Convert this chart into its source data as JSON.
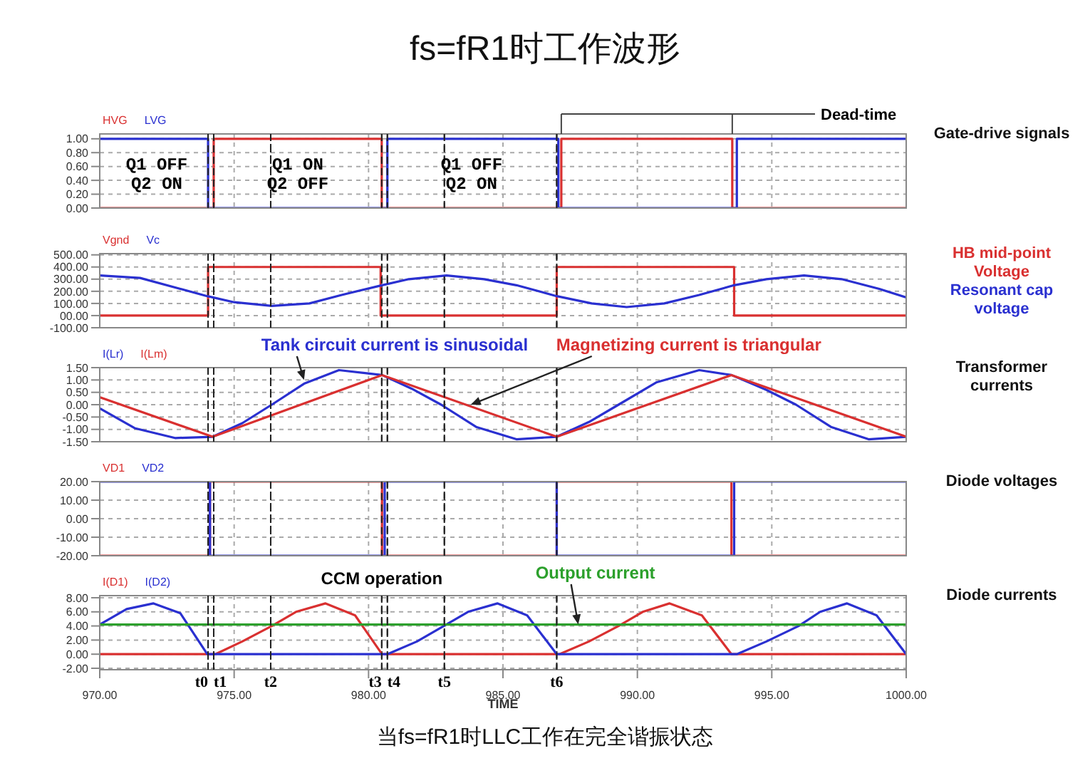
{
  "chart_data": [
    {
      "type": "line",
      "title": "fs=fR1时工作波形",
      "ylabel": "Gate-drive signals",
      "legend": "top left",
      "grid": true,
      "tick_labels": "y",
      "xlim": [
        970,
        1000
      ],
      "xticks": [
        970,
        975,
        980,
        985,
        990,
        995,
        1000
      ],
      "ylim": [
        0,
        1.07
      ],
      "yticks": [
        {
          "value": 0,
          "label": "0.00"
        },
        {
          "value": 0.2,
          "label": "0.20"
        },
        {
          "value": 0.4,
          "label": "0.40"
        },
        {
          "value": 0.6,
          "label": "0.60"
        },
        {
          "value": 0.8,
          "label": "0.80"
        },
        {
          "value": 1,
          "label": "1.00"
        }
      ],
      "series": [
        {
          "name": "HVG",
          "color": "#d93030",
          "x": [
            970,
            974.24,
            974.24,
            980.49,
            980.49,
            987.17,
            987.17,
            993.53,
            993.53,
            1000
          ],
          "values": [
            0,
            0,
            1,
            1,
            0,
            0,
            1,
            1,
            0,
            0
          ]
        },
        {
          "name": "LVG",
          "color": "#2a30d0",
          "x": [
            970,
            974.03,
            974.03,
            980.7,
            980.7,
            987.06,
            987.06,
            993.7,
            993.7,
            1000
          ],
          "values": [
            1,
            1,
            0,
            0,
            1,
            1,
            0,
            0,
            1,
            1
          ]
        }
      ],
      "ref_lines": [
        {
          "axis": "x",
          "value": 974.03,
          "line_style": "dashed"
        },
        {
          "axis": "x",
          "value": 974.24,
          "line_style": "dashed"
        },
        {
          "axis": "x",
          "value": 976.36,
          "line_style": "dashed"
        },
        {
          "axis": "x",
          "value": 980.49,
          "line_style": "dashed"
        },
        {
          "axis": "x",
          "value": 980.7,
          "line_style": "dashed"
        },
        {
          "axis": "x",
          "value": 982.82,
          "line_style": "dashed"
        },
        {
          "axis": "x",
          "value": 987.0,
          "line_style": "dashed"
        }
      ],
      "annotations": [
        "Dead-time",
        "Q1 OFF",
        "Q2 ON",
        "Q1 ON",
        "Q2 OFF",
        "Q1 OFF",
        "Q2 ON"
      ]
    },
    {
      "type": "line",
      "ylabel": "HB mid-point Voltage",
      "y2label": "Resonant cap voltage",
      "legend": "top left",
      "grid": true,
      "tick_labels": "y",
      "xlim": [
        970,
        1000
      ],
      "xticks": [
        970,
        975,
        980,
        985,
        990,
        995,
        1000
      ],
      "ylim": [
        -100,
        510
      ],
      "yticks": [
        {
          "value": -100,
          "label": "-100.00"
        },
        {
          "value": 0,
          "label": "00.00"
        },
        {
          "value": 100,
          "label": "100.00"
        },
        {
          "value": 200,
          "label": "200.00"
        },
        {
          "value": 300,
          "label": "300.00"
        },
        {
          "value": 400,
          "label": "400.00"
        },
        {
          "value": 500,
          "label": "500.00"
        }
      ],
      "series": [
        {
          "name": "Vgnd",
          "color": "#d93030",
          "x": [
            970,
            974.03,
            974.03,
            980.45,
            980.45,
            987.0,
            987.0,
            993.6,
            993.6,
            1000
          ],
          "values": [
            0,
            0,
            400,
            400,
            0,
            0,
            400,
            400,
            0,
            0
          ]
        },
        {
          "name": "Vc",
          "color": "#2a30d0",
          "x": [
            970,
            971.5,
            973,
            974,
            975,
            976.4,
            977.8,
            979,
            980.5,
            981.5,
            982.9,
            984.3,
            985.5,
            987,
            988.3,
            989.6,
            991,
            992.3,
            993.6,
            994.8,
            996.2,
            997.6,
            999,
            1000
          ],
          "values": [
            330,
            310,
            220,
            160,
            110,
            80,
            100,
            170,
            250,
            300,
            330,
            300,
            250,
            160,
            100,
            70,
            100,
            170,
            250,
            300,
            330,
            300,
            220,
            150
          ]
        }
      ],
      "ref_lines": [
        {
          "axis": "x",
          "value": 974.03,
          "line_style": "dashed"
        },
        {
          "axis": "x",
          "value": 974.24,
          "line_style": "dashed"
        },
        {
          "axis": "x",
          "value": 976.36,
          "line_style": "dashed"
        },
        {
          "axis": "x",
          "value": 980.49,
          "line_style": "dashed"
        },
        {
          "axis": "x",
          "value": 980.7,
          "line_style": "dashed"
        },
        {
          "axis": "x",
          "value": 982.82,
          "line_style": "dashed"
        },
        {
          "axis": "x",
          "value": 987.0,
          "line_style": "dashed"
        }
      ]
    },
    {
      "type": "line",
      "ylabel": "Transformer currents",
      "legend": "top left",
      "grid": true,
      "tick_labels": "y",
      "xlim": [
        970,
        1000
      ],
      "xticks": [
        970,
        975,
        980,
        985,
        990,
        995,
        1000
      ],
      "ylim": [
        -1.5,
        1.5
      ],
      "yticks": [
        {
          "value": -1.5,
          "label": "-1.50"
        },
        {
          "value": -1,
          "label": "-1.00"
        },
        {
          "value": -0.5,
          "label": "-0.50"
        },
        {
          "value": 0,
          "label": "0.00"
        },
        {
          "value": 0.5,
          "label": "0.50"
        },
        {
          "value": 1,
          "label": "1.00"
        },
        {
          "value": 1.5,
          "label": "1.50"
        }
      ],
      "series": [
        {
          "name": "I(Lr)",
          "color": "#2a30d0",
          "x": [
            970,
            971.3,
            972.8,
            974.2,
            975.3,
            976.4,
            977.6,
            978.9,
            980.5,
            981.6,
            982.7,
            984,
            985.5,
            987,
            988.2,
            989.3,
            990.7,
            992.3,
            993.5,
            994.8,
            995.9,
            997.2,
            998.6,
            1000
          ],
          "values": [
            -0.15,
            -0.95,
            -1.35,
            -1.3,
            -0.75,
            0,
            0.85,
            1.4,
            1.2,
            0.65,
            0,
            -0.9,
            -1.4,
            -1.3,
            -0.7,
            0,
            0.9,
            1.4,
            1.2,
            0.6,
            0,
            -0.9,
            -1.4,
            -1.3
          ]
        },
        {
          "name": "I(Lm)",
          "color": "#d93030",
          "x": [
            970,
            974.2,
            980.5,
            987.0,
            993.5,
            1000
          ],
          "values": [
            0.3,
            -1.3,
            1.2,
            -1.3,
            1.2,
            -1.3
          ]
        }
      ],
      "ref_lines": [
        {
          "axis": "x",
          "value": 974.03,
          "line_style": "dashed"
        },
        {
          "axis": "x",
          "value": 974.24,
          "line_style": "dashed"
        },
        {
          "axis": "x",
          "value": 976.36,
          "line_style": "dashed"
        },
        {
          "axis": "x",
          "value": 980.49,
          "line_style": "dashed"
        },
        {
          "axis": "x",
          "value": 980.7,
          "line_style": "dashed"
        },
        {
          "axis": "x",
          "value": 982.82,
          "line_style": "dashed"
        },
        {
          "axis": "x",
          "value": 987.0,
          "line_style": "dashed"
        }
      ],
      "annotations": [
        {
          "text": "Tank circuit current is sinusoidal",
          "x": 977.6,
          "y": 1.0
        },
        {
          "text": "Magnetizing current is triangular",
          "x": 983.8,
          "y": 0.0
        }
      ]
    },
    {
      "type": "line",
      "ylabel": "Diode voltages",
      "legend": "top left",
      "grid": true,
      "tick_labels": "y",
      "xlim": [
        970,
        1000
      ],
      "xticks": [
        970,
        975,
        980,
        985,
        990,
        995,
        1000
      ],
      "ylim": [
        -20,
        20
      ],
      "yticks": [
        {
          "value": -20,
          "label": "-20.00"
        },
        {
          "value": -10,
          "label": "-10.00"
        },
        {
          "value": 0,
          "label": "0.00"
        },
        {
          "value": 10,
          "label": "10.00"
        },
        {
          "value": 20,
          "label": "20.00"
        }
      ],
      "series": [
        {
          "name": "VD1",
          "color": "#d93030",
          "x": [
            970,
            974.1,
            974.1,
            980.5,
            980.5,
            987.0,
            987.0,
            993.5,
            993.5,
            1000
          ],
          "values": [
            -20,
            -20,
            20,
            20,
            -20,
            -20,
            20,
            20,
            -20,
            -20
          ]
        },
        {
          "name": "VD2",
          "color": "#2a30d0",
          "x": [
            970,
            974.1,
            974.1,
            980.6,
            980.6,
            987.0,
            987.0,
            993.6,
            993.6,
            1000
          ],
          "values": [
            20,
            20,
            -20,
            -20,
            20,
            20,
            -20,
            -20,
            20,
            20
          ]
        }
      ],
      "ref_lines": [
        {
          "axis": "x",
          "value": 974.03,
          "line_style": "dashed"
        },
        {
          "axis": "x",
          "value": 974.24,
          "line_style": "dashed"
        },
        {
          "axis": "x",
          "value": 976.36,
          "line_style": "dashed"
        },
        {
          "axis": "x",
          "value": 980.49,
          "line_style": "dashed"
        },
        {
          "axis": "x",
          "value": 980.7,
          "line_style": "dashed"
        },
        {
          "axis": "x",
          "value": 982.82,
          "line_style": "dashed"
        },
        {
          "axis": "x",
          "value": 987.0,
          "line_style": "dashed"
        }
      ]
    },
    {
      "type": "line",
      "ylabel": "Diode currents",
      "xlabel": "TIME",
      "subtitle": "当fs=fR1时LLC工作在完全谐振状态",
      "legend": "top left",
      "grid": true,
      "xlim": [
        970,
        1000
      ],
      "xticks": [
        {
          "value": 970,
          "label": "970.00"
        },
        {
          "value": 975,
          "label": "975.00"
        },
        {
          "value": 980,
          "label": "980.00"
        },
        {
          "value": 985,
          "label": "985.00"
        },
        {
          "value": 990,
          "label": "990.00"
        },
        {
          "value": 995,
          "label": "995.00"
        },
        {
          "value": 1000,
          "label": "1000.00"
        }
      ],
      "ylim": [
        -2.2,
        8.3
      ],
      "yticks": [
        {
          "value": -2,
          "label": "-2.00"
        },
        {
          "value": 0,
          "label": "0.00"
        },
        {
          "value": 2,
          "label": "2.00"
        },
        {
          "value": 4,
          "label": "4.00"
        },
        {
          "value": 6,
          "label": "6.00"
        },
        {
          "value": 8,
          "label": "8.00"
        }
      ],
      "series": [
        {
          "name": "I(D1)",
          "color": "#d93030",
          "x": [
            970,
            974.3,
            975.3,
            976.4,
            977.3,
            978.4,
            979.5,
            980.5,
            987.1,
            988.2,
            989.3,
            990.2,
            991.2,
            992.4,
            993.5,
            1000
          ],
          "values": [
            0,
            0,
            1.8,
            4,
            6,
            7.2,
            5.5,
            0,
            0,
            1.8,
            4,
            6,
            7.2,
            5.5,
            0,
            0
          ]
        },
        {
          "name": "I(D2)",
          "color": "#2a30d0",
          "x": [
            970,
            971,
            972,
            973,
            974,
            980.7,
            981.8,
            982.8,
            983.7,
            984.8,
            985.9,
            987,
            993.7,
            994.8,
            996,
            996.8,
            997.8,
            998.9,
            1000
          ],
          "values": [
            4.2,
            6.4,
            7.2,
            5.8,
            0,
            0,
            1.8,
            4,
            6,
            7.2,
            5.5,
            0,
            0,
            1.8,
            4,
            6,
            7.2,
            5.5,
            0
          ]
        },
        {
          "color": "#2ca02c",
          "x": [
            970,
            1000
          ],
          "values": [
            4.2,
            4.2
          ]
        }
      ],
      "ref_lines": [
        {
          "axis": "x",
          "value": 974.03,
          "label": "t0",
          "line_style": "dashed"
        },
        {
          "axis": "x",
          "value": 974.24,
          "label": "t1",
          "line_style": "dashed"
        },
        {
          "axis": "x",
          "value": 976.36,
          "label": "t2",
          "line_style": "dashed"
        },
        {
          "axis": "x",
          "value": 980.49,
          "label": "t3",
          "line_style": "dashed"
        },
        {
          "axis": "x",
          "value": 980.7,
          "label": "t4",
          "line_style": "dashed"
        },
        {
          "axis": "x",
          "value": 982.82,
          "label": "t5",
          "line_style": "dashed"
        },
        {
          "axis": "x",
          "value": 987.0,
          "label": "t6",
          "line_style": "dashed"
        }
      ],
      "annotations": [
        "CCM operation",
        {
          "text": "Output current",
          "x": 987.8,
          "y": 4.2
        }
      ]
    }
  ]
}
